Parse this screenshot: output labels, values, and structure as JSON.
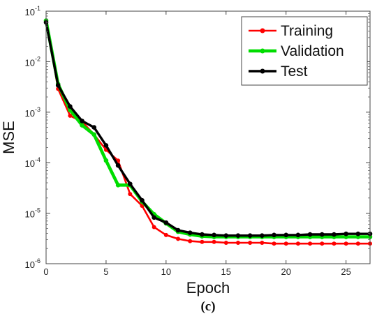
{
  "chart_data": {
    "type": "line",
    "xlabel": "Epoch",
    "ylabel": "MSE",
    "xlim": [
      0,
      27
    ],
    "ylim_exponent": [
      -6,
      -1
    ],
    "yscale": "log",
    "xticks": [
      "0",
      "5",
      "10",
      "15",
      "20",
      "25"
    ],
    "yticks": [
      {
        "base": "10",
        "exp": "-6"
      },
      {
        "base": "10",
        "exp": "-5"
      },
      {
        "base": "10",
        "exp": "-4"
      },
      {
        "base": "10",
        "exp": "-3"
      },
      {
        "base": "10",
        "exp": "-2"
      },
      {
        "base": "10",
        "exp": "-1"
      }
    ],
    "grid": false,
    "legend_position": "top-right",
    "x": [
      0,
      1,
      2,
      3,
      4,
      5,
      6,
      7,
      8,
      9,
      10,
      11,
      12,
      13,
      14,
      15,
      16,
      17,
      18,
      19,
      20,
      21,
      22,
      23,
      24,
      25,
      26,
      27
    ],
    "series": [
      {
        "name": "Training",
        "color": "#ff0000",
        "values": [
          0.065,
          0.0029,
          0.00085,
          0.00065,
          0.00036,
          0.00018,
          0.00011,
          2.4e-05,
          1.4e-05,
          5.3e-06,
          3.7e-06,
          3.1e-06,
          2.8e-06,
          2.7e-06,
          2.7e-06,
          2.6e-06,
          2.6e-06,
          2.6e-06,
          2.6e-06,
          2.5e-06,
          2.5e-06,
          2.5e-06,
          2.5e-06,
          2.5e-06,
          2.5e-06,
          2.5e-06,
          2.5e-06,
          2.5e-06
        ]
      },
      {
        "name": "Validation",
        "color": "#00dd00",
        "values": [
          0.065,
          0.0036,
          0.0011,
          0.00055,
          0.00036,
          0.00011,
          3.6e-05,
          3.6e-05,
          1.7e-05,
          9.5e-06,
          6.3e-06,
          4.3e-06,
          3.8e-06,
          3.5e-06,
          3.4e-06,
          3.4e-06,
          3.4e-06,
          3.4e-06,
          3.4e-06,
          3.4e-06,
          3.4e-06,
          3.4e-06,
          3.4e-06,
          3.4e-06,
          3.4e-06,
          3.4e-06,
          3.4e-06,
          3.4e-06
        ]
      },
      {
        "name": "Test",
        "color": "#000000",
        "values": [
          0.06,
          0.0034,
          0.0013,
          0.00067,
          0.0005,
          0.00022,
          8.8e-05,
          3.8e-05,
          1.8e-05,
          8.2e-06,
          6.5e-06,
          4.6e-06,
          4.1e-06,
          3.8e-06,
          3.7e-06,
          3.6e-06,
          3.6e-06,
          3.6e-06,
          3.6e-06,
          3.7e-06,
          3.7e-06,
          3.7e-06,
          3.8e-06,
          3.8e-06,
          3.8e-06,
          3.9e-06,
          3.9e-06,
          3.9e-06
        ]
      }
    ]
  },
  "caption": "(c)"
}
